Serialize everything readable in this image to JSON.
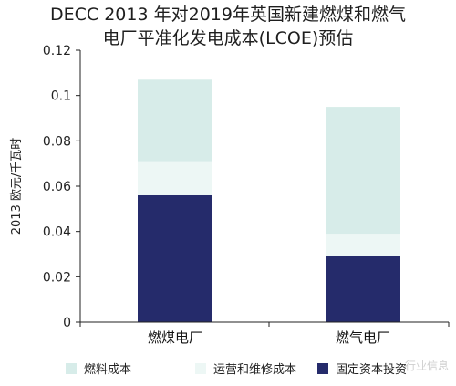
{
  "header": {
    "title_line1": "DECC 2013 年对2019年英国新建燃煤和燃气",
    "title_line2": "电厂平准化发电成本(LCOE)预估"
  },
  "watermark": "行业信息",
  "colors": {
    "fuel": "#d7ece9",
    "om": "#edf7f5",
    "capital": "#252b6b",
    "axis": "#222222"
  },
  "chart_data": {
    "type": "bar",
    "stacked": true,
    "categories": [
      "燃煤电厂",
      "燃气电厂"
    ],
    "series": [
      {
        "name": "固定资本投资",
        "values": [
          0.056,
          0.029
        ],
        "color": "#252b6b"
      },
      {
        "name": "运营和维修成本",
        "values": [
          0.015,
          0.01
        ],
        "color": "#edf7f5"
      },
      {
        "name": "燃料成本",
        "values": [
          0.036,
          0.056
        ],
        "color": "#d7ece9"
      }
    ],
    "legend_order": [
      "燃料成本",
      "运营和维修成本",
      "固定资本投资"
    ],
    "ylabel": "2013 欧元/千瓦时",
    "ylim": [
      0,
      0.12
    ],
    "yticks": [
      "0",
      "0.02",
      "0.04",
      "0.06",
      "0.08",
      "0.1",
      "0.12"
    ],
    "ytick_values": [
      0,
      0.02,
      0.04,
      0.06,
      0.08,
      0.1,
      0.12
    ],
    "legend_position": "bottom",
    "grid": false
  }
}
